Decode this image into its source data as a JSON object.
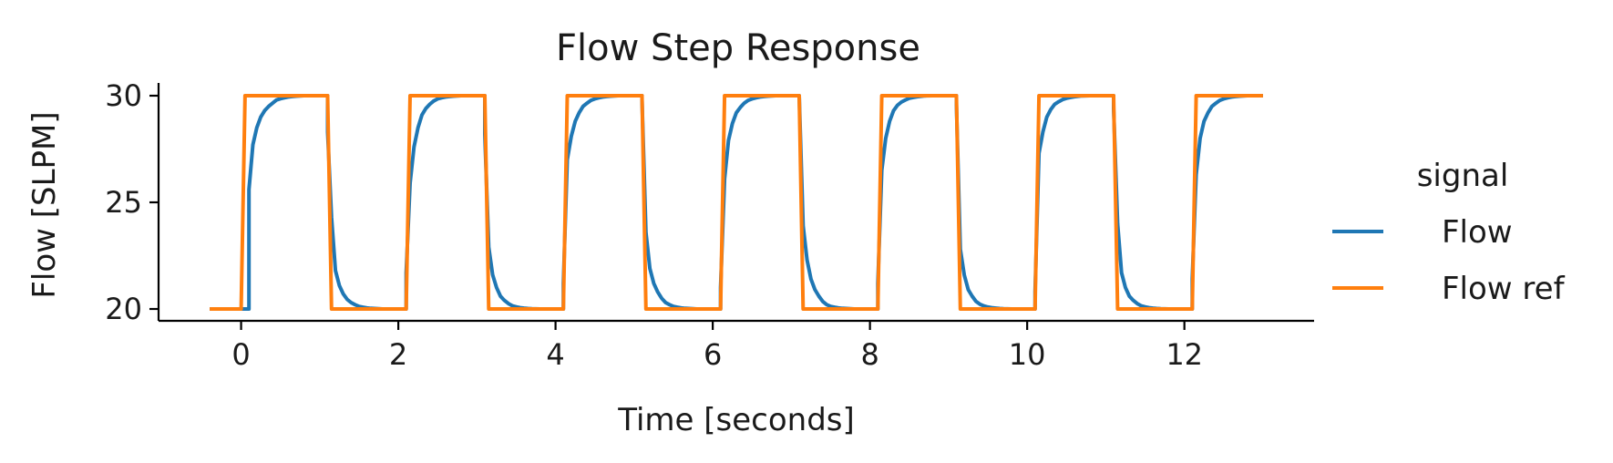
{
  "chart_data": {
    "type": "line",
    "title": "Flow Step Response",
    "xlabel": "Time [seconds]",
    "ylabel": "Flow [SLPM]",
    "xlim": [
      -1.05,
      13.65
    ],
    "ylim": [
      19.5,
      30.6
    ],
    "xticks": [
      0,
      2,
      4,
      6,
      8,
      10,
      12
    ],
    "yticks": [
      20,
      25,
      30
    ],
    "grid": false,
    "legend": {
      "title": "signal",
      "placement": "right"
    },
    "series": [
      {
        "name": "Flow",
        "color": "#1f77b4",
        "x": [
          -0.4,
          0.1,
          0.1,
          0.15,
          0.2,
          0.25,
          0.3,
          0.35,
          0.4,
          0.45,
          0.5,
          0.55,
          0.6,
          0.65,
          0.7,
          0.8,
          1.1,
          1.1,
          1.15,
          1.2,
          1.25,
          1.3,
          1.35,
          1.4,
          1.45,
          1.5,
          1.55,
          1.6,
          1.65,
          1.7,
          1.8,
          2.1,
          2.1,
          2.15,
          2.2,
          2.25,
          2.3,
          2.35,
          2.4,
          2.45,
          2.5,
          2.55,
          2.6,
          2.65,
          2.7,
          2.8,
          3.1,
          3.1,
          3.15,
          3.2,
          3.25,
          3.3,
          3.35,
          3.4,
          3.45,
          3.5,
          3.55,
          3.6,
          3.65,
          3.7,
          3.8,
          4.1,
          4.1,
          4.15,
          4.2,
          4.25,
          4.3,
          4.35,
          4.4,
          4.45,
          4.5,
          4.55,
          4.6,
          4.65,
          4.7,
          4.8,
          5.1,
          5.1,
          5.15,
          5.2,
          5.25,
          5.3,
          5.35,
          5.4,
          5.45,
          5.5,
          5.55,
          5.6,
          5.65,
          5.7,
          5.8,
          6.1,
          6.1,
          6.15,
          6.2,
          6.25,
          6.3,
          6.35,
          6.4,
          6.45,
          6.5,
          6.55,
          6.6,
          6.65,
          6.7,
          6.8,
          7.1,
          7.1,
          7.15,
          7.2,
          7.25,
          7.3,
          7.35,
          7.4,
          7.45,
          7.5,
          7.55,
          7.6,
          7.65,
          7.7,
          7.8,
          8.1,
          8.1,
          8.15,
          8.2,
          8.25,
          8.3,
          8.35,
          8.4,
          8.45,
          8.5,
          8.55,
          8.6,
          8.65,
          8.7,
          8.8,
          9.1,
          9.1,
          9.15,
          9.2,
          9.25,
          9.3,
          9.35,
          9.4,
          9.45,
          9.5,
          9.55,
          9.6,
          9.65,
          9.7,
          9.8,
          10.1,
          10.1,
          10.15,
          10.2,
          10.25,
          10.3,
          10.35,
          10.4,
          10.45,
          10.5,
          10.55,
          10.6,
          10.65,
          10.7,
          10.8,
          11.1,
          11.1,
          11.15,
          11.2,
          11.25,
          11.3,
          11.35,
          11.4,
          11.45,
          11.5,
          11.55,
          11.6,
          11.65,
          11.7,
          11.8,
          12.1,
          12.1,
          12.15,
          12.2,
          12.25,
          12.3,
          12.35,
          12.4,
          12.45,
          12.5,
          12.55,
          12.6,
          12.65,
          12.7,
          12.8,
          13.0
        ],
        "y": [
          20,
          20,
          25.6,
          27.7,
          28.5,
          29.0,
          29.3,
          29.5,
          29.65,
          29.8,
          29.86,
          29.9,
          29.94,
          29.96,
          29.98,
          30,
          30,
          28.3,
          24.3,
          21.8,
          21.1,
          20.7,
          20.45,
          20.3,
          20.2,
          20.12,
          20.08,
          20.05,
          20.03,
          20.02,
          20,
          20,
          21.7,
          25.9,
          27.6,
          28.5,
          29.1,
          29.4,
          29.6,
          29.75,
          29.85,
          29.9,
          29.94,
          29.96,
          29.98,
          30,
          30,
          28.2,
          22.9,
          21.6,
          21.0,
          20.6,
          20.4,
          20.25,
          20.15,
          20.1,
          20.06,
          20.04,
          20.02,
          20.01,
          20,
          20,
          21.2,
          27.0,
          28.1,
          28.8,
          29.2,
          29.5,
          29.65,
          29.78,
          29.85,
          29.9,
          29.94,
          29.96,
          29.98,
          30,
          30,
          29.8,
          23.6,
          21.9,
          21.2,
          20.8,
          20.5,
          20.3,
          20.2,
          20.12,
          20.08,
          20.05,
          20.03,
          20.02,
          20,
          20,
          21.0,
          26.1,
          27.9,
          28.7,
          29.2,
          29.45,
          29.65,
          29.78,
          29.85,
          29.9,
          29.94,
          29.96,
          29.98,
          30,
          30,
          30,
          23.9,
          22.3,
          21.4,
          20.9,
          20.6,
          20.35,
          20.2,
          20.12,
          20.08,
          20.05,
          20.03,
          20.02,
          20,
          20,
          21.2,
          26.5,
          28.0,
          28.8,
          29.3,
          29.55,
          29.7,
          29.8,
          29.88,
          29.92,
          29.95,
          29.97,
          29.99,
          30,
          30,
          29.6,
          22.8,
          21.6,
          20.9,
          20.6,
          20.35,
          20.22,
          20.14,
          20.09,
          20.06,
          20.04,
          20.02,
          20.01,
          20,
          20,
          20.8,
          27.3,
          28.3,
          29.0,
          29.35,
          29.6,
          29.72,
          29.82,
          29.88,
          29.92,
          29.95,
          29.97,
          29.99,
          30,
          30,
          29.4,
          24.0,
          21.7,
          21.0,
          20.6,
          20.4,
          20.25,
          20.15,
          20.1,
          20.06,
          20.04,
          20.02,
          20.01,
          20,
          20,
          21.4,
          26.3,
          28.0,
          28.8,
          29.2,
          29.5,
          29.65,
          29.78,
          29.85,
          29.9,
          29.94,
          29.96,
          29.98,
          30,
          30
        ]
      },
      {
        "name": "Flow ref",
        "color": "#ff7f0e",
        "x": [
          -0.4,
          0.0,
          0.05,
          1.1,
          1.15,
          2.1,
          2.15,
          3.1,
          3.15,
          4.1,
          4.15,
          5.1,
          5.15,
          6.1,
          6.15,
          7.1,
          7.15,
          8.1,
          8.15,
          9.1,
          9.15,
          10.1,
          10.15,
          11.1,
          11.15,
          12.1,
          12.15,
          13.0
        ],
        "y": [
          20,
          20,
          30,
          30,
          20,
          20,
          30,
          30,
          20,
          20,
          30,
          30,
          20,
          20,
          30,
          30,
          20,
          20,
          30,
          30,
          20,
          20,
          30,
          30,
          20,
          20,
          30,
          30
        ]
      }
    ]
  }
}
